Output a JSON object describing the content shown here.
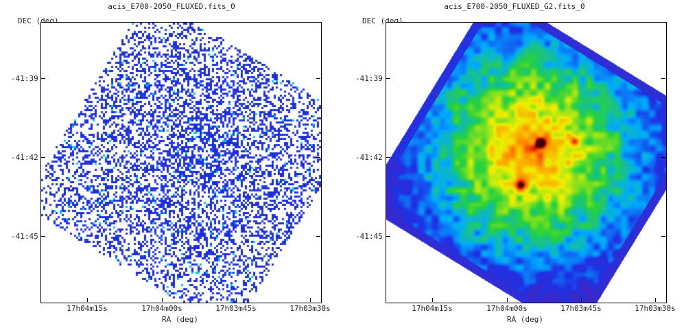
{
  "panels": [
    {
      "title": "acis_E700-2050_FLUXED.fits_0",
      "ylabel": "DEC (deg)",
      "xlabel": "RA (deg)",
      "yticks": [
        "-41:39",
        "-41:42",
        "-41:45"
      ],
      "xticks": [
        "17h04m15s",
        "17h04m00s",
        "17h03m45s",
        "17h03m30s"
      ],
      "style": "raw-counts"
    },
    {
      "title": "acis_E700-2050_FLUXED_G2.fits_0",
      "ylabel": "DEC (deg)",
      "xlabel": "RA (deg)",
      "yticks": [
        "-41:39",
        "-41:42",
        "-41:45"
      ],
      "xticks": [
        "17h04m15s",
        "17h04m00s",
        "17h03m45s",
        "17h03m30s"
      ],
      "style": "smoothed"
    }
  ],
  "colors": {
    "low": "#1e2fd8",
    "mid_low": "#00c8ff",
    "mid": "#3cd23c",
    "mid_high": "#f0f000",
    "high": "#ff6000",
    "peak": "#400000"
  }
}
